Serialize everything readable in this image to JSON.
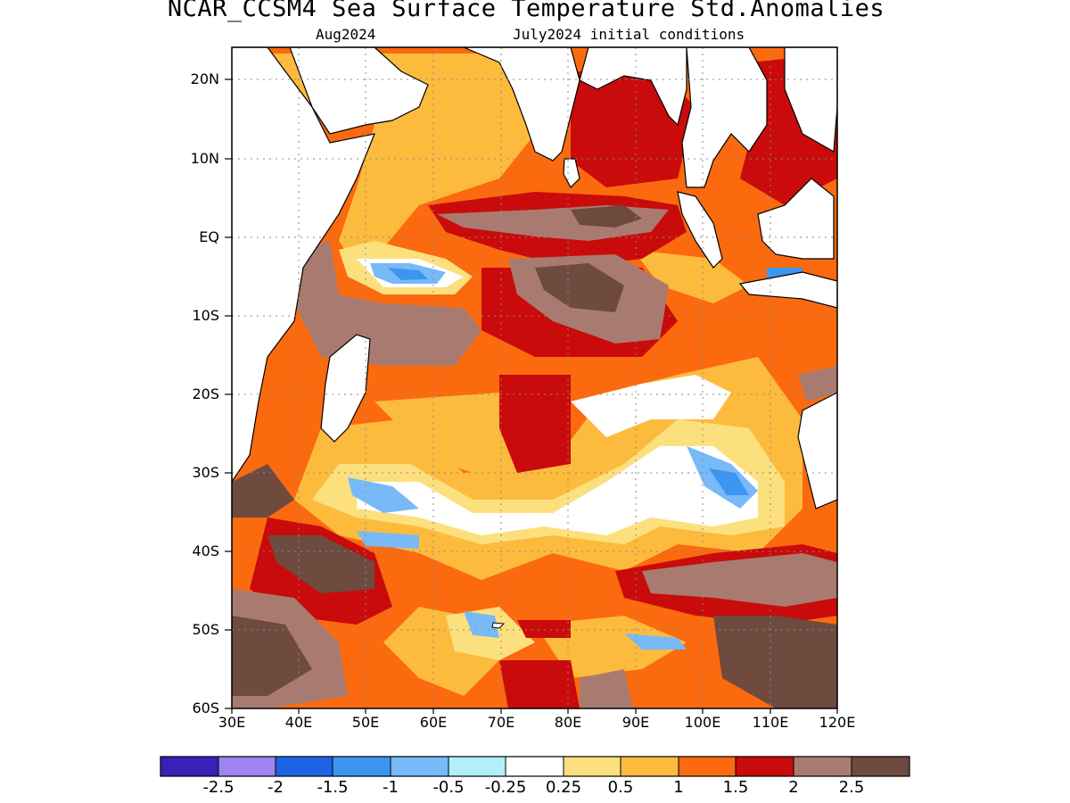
{
  "header": {
    "title": "NCAR_CCSM4 Sea Surface Temperature Std.Anomalies",
    "valid_month": "Aug2024",
    "init": "July2024 initial conditions"
  },
  "map": {
    "lat_labels": [
      "20N",
      "10N",
      "EQ",
      "10S",
      "20S",
      "30S",
      "40S",
      "50S",
      "60S"
    ],
    "lon_labels": [
      "30E",
      "40E",
      "50E",
      "60E",
      "70E",
      "80E",
      "90E",
      "100E",
      "110E",
      "120E"
    ],
    "lat_range": [
      -60,
      24
    ],
    "lon_range": [
      30,
      120
    ],
    "land_color": "#ffffff",
    "coast_color": "#000000"
  },
  "colorbar": {
    "colors": [
      "#3a1fb8",
      "#9e85f2",
      "#1e63e6",
      "#3c96f0",
      "#78b9f8",
      "#b3effb",
      "#ffffff",
      "#fde07e",
      "#fdbb3d",
      "#fb6a0e",
      "#c90b0b",
      "#a97b70",
      "#6e4a3f"
    ],
    "labels": [
      "-2.5",
      "-2",
      "-1.5",
      "-1",
      "-0.5",
      "-0.25",
      "0.25",
      "0.5",
      "1",
      "1.5",
      "2",
      "2.5"
    ]
  }
}
